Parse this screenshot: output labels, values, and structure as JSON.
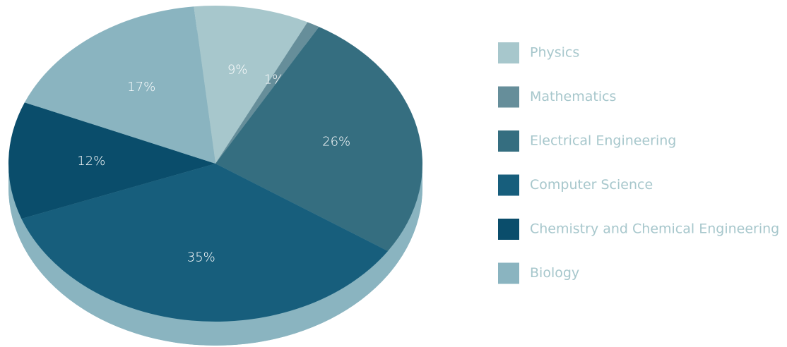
{
  "chart_data": {
    "type": "pie",
    "categories": [
      "Physics",
      "Mathematics",
      "Electrical Engineering",
      "Computer Science",
      "Chemistry and Chemical Engineering",
      "Biology"
    ],
    "values": [
      9,
      1,
      26,
      35,
      12,
      17
    ],
    "value_labels": [
      "9%",
      "1%",
      "26%",
      "35%",
      "12%",
      "17%"
    ],
    "colors": [
      "#a7c7cc",
      "#668e9a",
      "#356e80",
      "#175e7c",
      "#0a4d6b",
      "#8ab4c0"
    ],
    "legend": "right"
  }
}
